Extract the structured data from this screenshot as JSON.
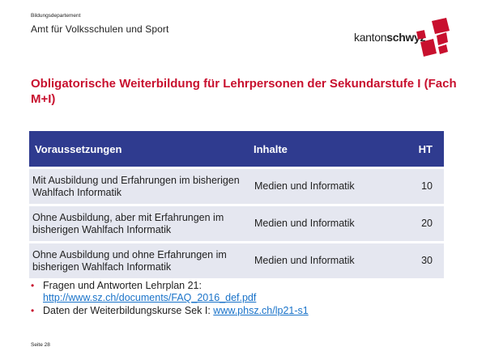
{
  "header": {
    "department": "Bildungsdepartement",
    "office": "Amt für Volksschulen und Sport",
    "logo_text_light": "kanton",
    "logo_text_bold": "schwyz",
    "logo_color": "#c8102e"
  },
  "title": "Obligatorische Weiterbildung für Lehrpersonen der Sekundarstufe I (Fach M+I)",
  "table": {
    "headers": [
      "Voraussetzungen",
      "Inhalte",
      "HT"
    ],
    "rows": [
      {
        "condition": "Mit Ausbildung und Erfahrungen im bisherigen Wahlfach Informatik",
        "content": "Medien und Informatik",
        "ht": "10"
      },
      {
        "condition": "Ohne Ausbildung, aber mit Erfahrungen im bisherigen Wahlfach Informatik",
        "content": "Medien und Informatik",
        "ht": "20"
      },
      {
        "condition": "Ohne Ausbildung und ohne Erfahrungen im bisherigen Wahlfach Informatik",
        "content": "Medien und Informatik",
        "ht": "30"
      }
    ],
    "header_color": "#2f3b8f",
    "row_color": "#e5e7f0"
  },
  "bullets": [
    {
      "text": "Fragen und Antworten Lehrplan 21: ",
      "link": "http://www.sz.ch/documents/FAQ_2016_def.pdf"
    },
    {
      "text": "Daten der Weiterbildungskurse Sek I: ",
      "link": "www.phsz.ch/lp21-s1"
    }
  ],
  "footer": "Seite 28"
}
